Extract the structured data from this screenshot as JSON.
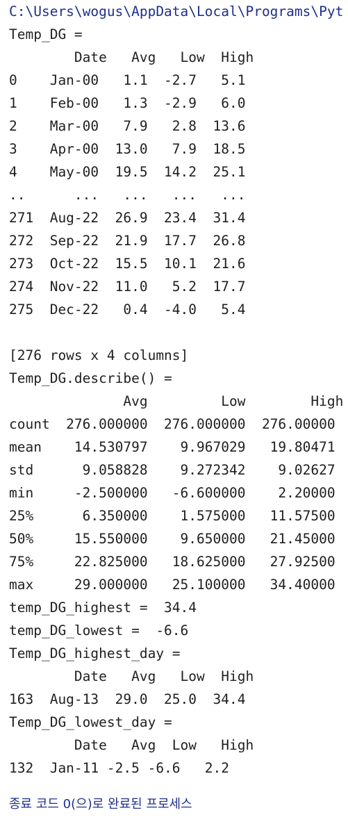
{
  "console": {
    "path": "C:\\Users\\wogus\\AppData\\Local\\Programs\\Pyt",
    "lines": [
      "Temp_DG =",
      "        Date   Avg   Low  High",
      "0    Jan-00   1.1  -2.7   5.1",
      "1    Feb-00   1.3  -2.9   6.0",
      "2    Mar-00   7.9   2.8  13.6",
      "3    Apr-00  13.0   7.9  18.5",
      "4    May-00  19.5  14.2  25.1",
      "..      ...   ...   ...   ...",
      "271  Aug-22  26.9  23.4  31.4",
      "272  Sep-22  21.9  17.7  26.8",
      "273  Oct-22  15.5  10.1  21.6",
      "274  Nov-22  11.0   5.2  17.7",
      "275  Dec-22   0.4  -4.0   5.4",
      "",
      "[276 rows x 4 columns]",
      "Temp_DG.describe() =",
      "              Avg         Low        High",
      "count  276.000000  276.000000  276.00000",
      "mean    14.530797    9.967029   19.80471",
      "std      9.058828    9.272342    9.02627",
      "min     -2.500000   -6.600000    2.20000",
      "25%      6.350000    1.575000   11.57500",
      "50%     15.550000    9.650000   21.45000",
      "75%     22.825000   18.625000   27.92500",
      "max     29.000000   25.100000   34.40000",
      "temp_DG_highest =  34.4",
      "temp_DG_lowest =  -6.6",
      "Temp_DG_highest_day =",
      "        Date   Avg   Low  High",
      "163  Aug-13  29.0  25.0  34.4",
      "Temp_DG_lowest_day =",
      "        Date   Avg  Low   High",
      "132  Jan-11 -2.5 -6.6   2.2"
    ],
    "exit_message": "종료 코드 0(으)로 완료된 프로세스"
  }
}
